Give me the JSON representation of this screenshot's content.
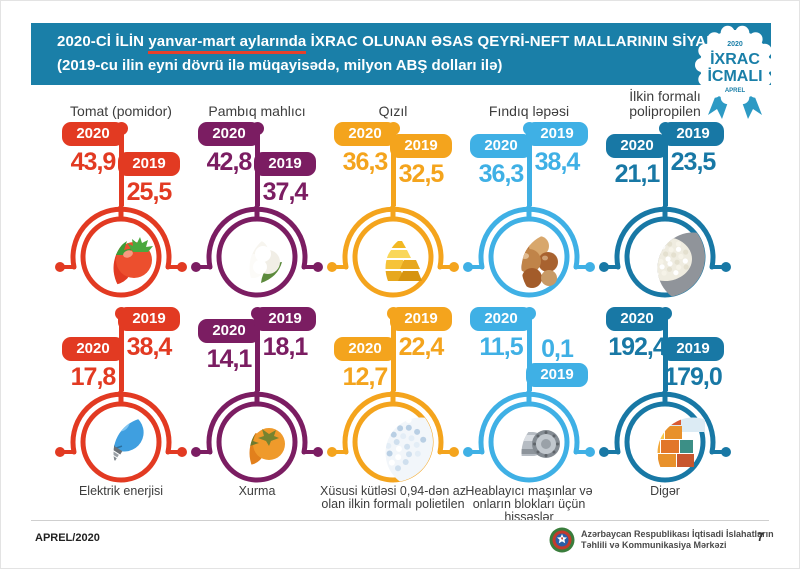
{
  "header": {
    "line1_pre": "2020-Cİ İLİN ",
    "line1_underlined": "yanvar-mart aylarında",
    "line1_post": " İXRAC OLUNAN ƏSAS QEYRİ-NEFT MALLARININ SİYAHISI",
    "line2": "(2019-cu ilin eyni dövrü ilə müqayisədə, milyon ABŞ dolları ilə)",
    "bg_color": "#1a7fa8",
    "underline_color": "#e8402b"
  },
  "badge": {
    "year": "2020",
    "line1": "İXRAC",
    "line2": "İCMALI",
    "month": "APREL",
    "ribbon_color": "#2d9ac4"
  },
  "legend": {
    "year_2020": "2020",
    "year_2019": "2019"
  },
  "products": [
    {
      "label": "Tomat (pomidor)",
      "color": "#e23a22",
      "icon": "tomato",
      "v2020": "43,9",
      "v2019": "25,5"
    },
    {
      "label": "Pambıq mahlıcı",
      "color": "#7b1d62",
      "icon": "cotton",
      "v2020": "42,8",
      "v2019": "37,4"
    },
    {
      "label": "Qızıl",
      "color": "#f4a41d",
      "icon": "gold",
      "v2020": "36,3",
      "v2019": "32,5"
    },
    {
      "label": "Fındıq ləpəsi",
      "color": "#3fb0e5",
      "icon": "hazelnut",
      "v2020": "36,3",
      "v2019": "38,4"
    },
    {
      "label": "İlkin formalı polipropilen",
      "color": "#1878a5",
      "icon": "granules-gray",
      "v2020": "21,1",
      "v2019": "23,5"
    },
    {
      "label": "Elektrik enerjisi",
      "color": "#e23a22",
      "icon": "bulb",
      "v2020": "17,8",
      "v2019": "38,4"
    },
    {
      "label": "Xurma",
      "color": "#7b1d62",
      "icon": "persimmon",
      "v2020": "14,1",
      "v2019": "18,1"
    },
    {
      "label": "Xüsusi kütləsi 0,94-dən az olan ilkin formalı polietilen",
      "color": "#f4a41d",
      "icon": "granules-blue",
      "v2020": "12,7",
      "v2019": "22,4"
    },
    {
      "label": "Heablayıcı maşınlar və onların blokları üçün hissəslər",
      "color": "#3fb0e5",
      "icon": "machine",
      "v2020": "11,5",
      "v2019": "0,1",
      "layout": "right-low"
    },
    {
      "label": "Digər",
      "color": "#1878a5",
      "icon": "containers",
      "v2020": "192,4",
      "v2019": "179,0"
    }
  ],
  "footer": {
    "date": "APREL/2020",
    "org_line1": "Azərbaycan Respublikası İqtisadi İslahatların",
    "org_line2": "Təhlili və Kommunikasiya Mərkəzi",
    "page": "7"
  },
  "chart_data": {
    "type": "bar",
    "title": "2020-ci ilin yanvar-mart aylarında ixrac olunan əsas qeyri-neft mallarının siyahısı",
    "subtitle": "2019-cu ilin eyni dövrü ilə müqayisədə, milyon ABŞ dolları ilə",
    "unit": "milyon ABŞ dolları",
    "categories": [
      "Tomat (pomidor)",
      "Pambıq mahlıcı",
      "Qızıl",
      "Fındıq ləpəsi",
      "İlkin formalı polipropilen",
      "Elektrik enerjisi",
      "Xurma",
      "Xüsusi kütləsi 0,94-dən az olan ilkin formalı polietilen",
      "Heablayıcı maşınlar və onların blokları üçün hissəslər",
      "Digər"
    ],
    "series": [
      {
        "name": "2020",
        "values": [
          43.9,
          42.8,
          36.3,
          36.3,
          21.1,
          17.8,
          14.1,
          12.7,
          11.5,
          192.4
        ]
      },
      {
        "name": "2019",
        "values": [
          25.5,
          37.4,
          32.5,
          38.4,
          23.5,
          38.4,
          18.1,
          22.4,
          0.1,
          179.0
        ]
      }
    ],
    "legend_position": "per-item flags",
    "grid": false
  }
}
